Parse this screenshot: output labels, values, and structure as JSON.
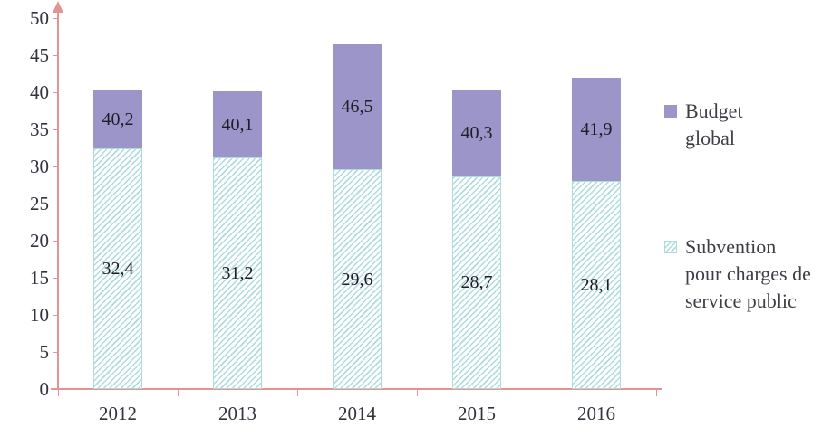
{
  "chart_data": {
    "type": "bar",
    "stacked": true,
    "title": "",
    "xlabel": "",
    "ylabel": "",
    "categories": [
      "2012",
      "2013",
      "2014",
      "2015",
      "2016"
    ],
    "series": [
      {
        "name": "Budget global",
        "values": [
          40.2,
          40.1,
          46.5,
          40.3,
          41.9
        ],
        "labels": [
          "40,2",
          "40,1",
          "46,5",
          "40,3",
          "41,9"
        ],
        "role": "total",
        "fill": "solid"
      },
      {
        "name": "Subvention pour charges de service public",
        "values": [
          32.4,
          31.2,
          29.6,
          28.7,
          28.1
        ],
        "labels": [
          "32,4",
          "31,2",
          "29,6",
          "28,7",
          "28,1"
        ],
        "role": "base",
        "fill": "diagonal-hatch"
      }
    ],
    "ylim": [
      0,
      50
    ],
    "yticks": [
      0,
      5,
      10,
      15,
      20,
      25,
      30,
      35,
      40,
      45,
      50
    ],
    "grid": false,
    "legend_position": "right",
    "colors": {
      "budget_fill": "#9b95c9",
      "subvention_hatch": "#aedcdc",
      "axis": "#e29494",
      "tick_text": "#33333d",
      "value_text": "#1e1e28",
      "legend_text": "#3e3e46"
    }
  }
}
